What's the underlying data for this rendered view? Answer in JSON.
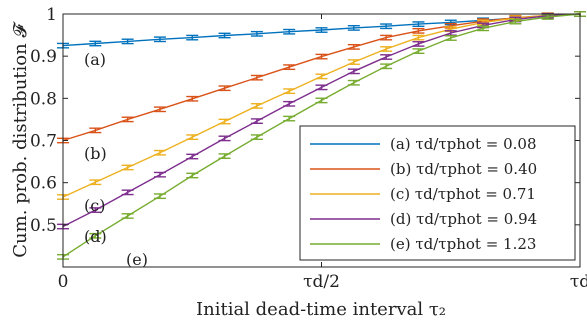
{
  "chart_data": {
    "type": "line",
    "ylabel": "Cum. prob. distribution 𝓕",
    "xlabel": "Initial dead-time interval τ₂",
    "xlim": [
      0,
      1
    ],
    "ylim": [
      0.4,
      1.0
    ],
    "grid": false,
    "legend_placement": "bottom-right",
    "x_ticks": [
      {
        "value": 0,
        "label": "0"
      },
      {
        "value": 0.5,
        "label": "τd/2"
      },
      {
        "value": 1,
        "label": "τd"
      }
    ],
    "y_ticks": [
      {
        "value": 0.5,
        "label": "0.5"
      },
      {
        "value": 0.6,
        "label": "0.6"
      },
      {
        "value": 0.7,
        "label": "0.7"
      },
      {
        "value": 0.8,
        "label": "0.8"
      },
      {
        "value": 0.9,
        "label": "0.9"
      },
      {
        "value": 1.0,
        "label": "1"
      }
    ],
    "x": [
      0,
      0.0625,
      0.125,
      0.1875,
      0.25,
      0.3125,
      0.375,
      0.4375,
      0.5,
      0.5625,
      0.625,
      0.6875,
      0.75,
      0.8125,
      0.875,
      0.9375,
      1
    ],
    "series": [
      {
        "label": "(a)",
        "legend": "(a)  τd/τphot = 0.08",
        "color": "#0072BD",
        "values": [
          0.925,
          0.93,
          0.935,
          0.94,
          0.944,
          0.949,
          0.953,
          0.958,
          0.962,
          0.967,
          0.971,
          0.976,
          0.98,
          0.985,
          0.99,
          0.995,
          1.0
        ]
      },
      {
        "label": "(b)",
        "legend": "(b)  τd/τphot = 0.40",
        "color": "#D95319",
        "values": [
          0.7,
          0.724,
          0.75,
          0.774,
          0.799,
          0.824,
          0.849,
          0.874,
          0.899,
          0.922,
          0.944,
          0.96,
          0.972,
          0.983,
          0.991,
          0.997,
          1.0
        ]
      },
      {
        "label": "(c)",
        "legend": "(c)  τd/τphot = 0.71",
        "color": "#EDB120",
        "values": [
          0.566,
          0.601,
          0.636,
          0.671,
          0.708,
          0.745,
          0.782,
          0.817,
          0.852,
          0.886,
          0.917,
          0.944,
          0.964,
          0.98,
          0.99,
          0.997,
          1.0
        ]
      },
      {
        "label": "(d)",
        "legend": "(d)  τd/τphot = 0.94",
        "color": "#7E2F8E",
        "values": [
          0.496,
          0.535,
          0.577,
          0.619,
          0.662,
          0.705,
          0.746,
          0.787,
          0.826,
          0.864,
          0.898,
          0.929,
          0.955,
          0.973,
          0.987,
          0.996,
          1.0
        ]
      },
      {
        "label": "(e)",
        "legend": "(e)  τd/τphot = 1.23",
        "color": "#77AC30",
        "values": [
          0.424,
          0.474,
          0.521,
          0.568,
          0.617,
          0.663,
          0.708,
          0.752,
          0.795,
          0.837,
          0.876,
          0.912,
          0.943,
          0.966,
          0.982,
          0.993,
          1.0
        ]
      }
    ]
  }
}
